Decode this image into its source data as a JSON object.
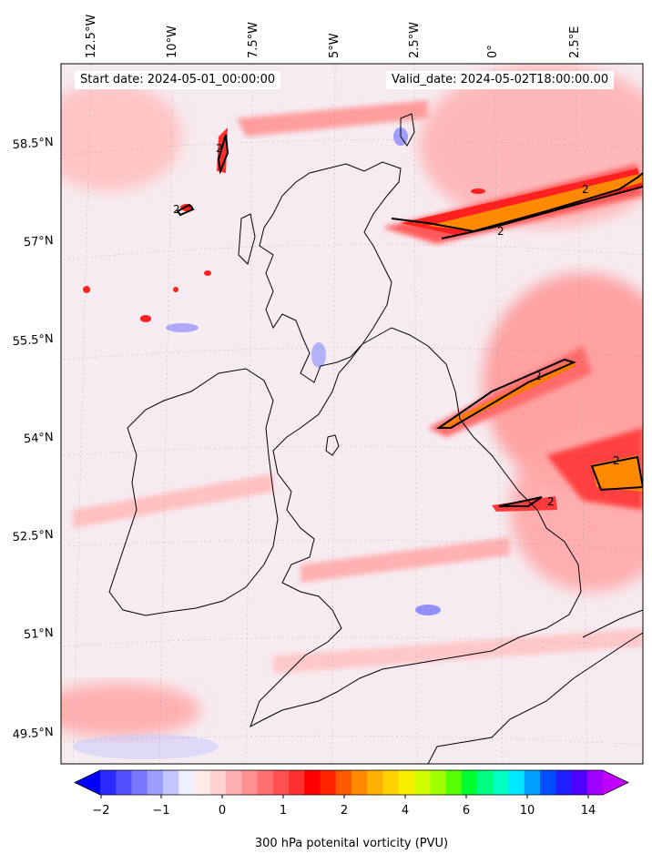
{
  "map": {
    "start_date": "Start date: 2024-05-01_00:00:00",
    "valid_date": "Valid_date: 2024-05-02T18:00:00.00",
    "lon_labels": [
      "12.5°W",
      "10°W",
      "7.5°W",
      "5°W",
      "2.5°W",
      "0°",
      "2.5°E"
    ],
    "lat_labels": [
      "58.5°N",
      "57°N",
      "55.5°N",
      "54°N",
      "52.5°N",
      "51°N",
      "49.5°N"
    ],
    "contour_label": "2",
    "colors": {
      "land_coast": "#000000",
      "background": "#eef0fb",
      "low_pv": "#3a3aff",
      "high_pv": "#ff0000",
      "very_high_pv": "#ff7a00"
    }
  },
  "colorbar": {
    "title": "300 hPa potenital vorticity (PVU)",
    "ticks": [
      "−2",
      "−1",
      "0",
      "1",
      "2",
      "4",
      "6",
      "10",
      "14"
    ],
    "colors": [
      "#0000ff",
      "#2a2aff",
      "#5050ff",
      "#7878ff",
      "#9d9dff",
      "#c4c4ff",
      "#eeeeff",
      "#ffeaea",
      "#ffd0d0",
      "#ffb0b0",
      "#ff9090",
      "#ff7070",
      "#ff5050",
      "#ff3030",
      "#ff0000",
      "#ff2400",
      "#ff5a00",
      "#ff8a00",
      "#ffb000",
      "#ffd200",
      "#f6f000",
      "#d2ff00",
      "#a0ff00",
      "#55ff00",
      "#00ff30",
      "#00ff80",
      "#00ffc0",
      "#00e8ff",
      "#00a0ff",
      "#0050ff",
      "#2020ff",
      "#5000ff",
      "#a000ff",
      "#c000ff"
    ]
  }
}
